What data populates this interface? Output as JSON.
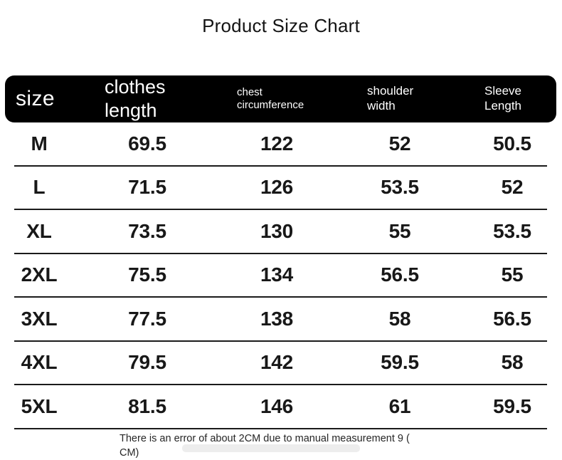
{
  "title": "Product Size Chart",
  "header": {
    "columns": [
      "size",
      "clothes length",
      "chest circumference",
      "shoulder width",
      "Sleeve Length"
    ]
  },
  "footnote": {
    "line1": "There is an error of about 2CM due to manual measurement 9 (",
    "line2": "CM)"
  },
  "colors": {
    "header_bg": "#000000",
    "header_text": "#ffffff",
    "body_text": "#181818",
    "divider": "#1b1b1b",
    "background": "#ffffff"
  },
  "chart_data": {
    "type": "table",
    "title": "Product Size Chart",
    "columns": [
      "size",
      "clothes length",
      "chest circumference",
      "shoulder width",
      "Sleeve Length"
    ],
    "rows": [
      [
        "M",
        "69.5",
        "122",
        "52",
        "50.5"
      ],
      [
        "L",
        "71.5",
        "126",
        "53.5",
        "52"
      ],
      [
        "XL",
        "73.5",
        "130",
        "55",
        "53.5"
      ],
      [
        "2XL",
        "75.5",
        "134",
        "56.5",
        "55"
      ],
      [
        "3XL",
        "77.5",
        "138",
        "58",
        "56.5"
      ],
      [
        "4XL",
        "79.5",
        "142",
        "59.5",
        "58"
      ],
      [
        "5XL",
        "81.5",
        "146",
        "61",
        "59.5"
      ]
    ],
    "footnote": "There is an error of about 2CM due to manual measurement 9 (CM)",
    "units": "CM"
  }
}
